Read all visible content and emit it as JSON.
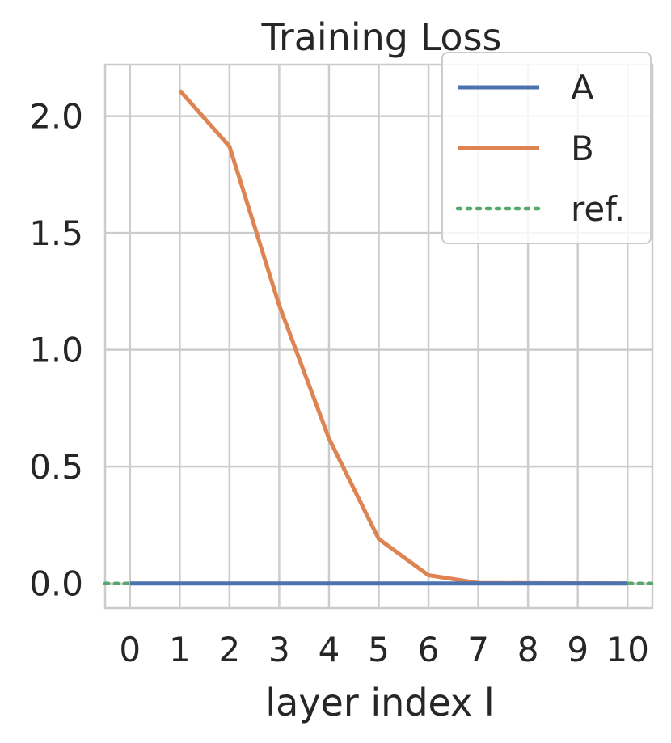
{
  "chart_data": {
    "type": "line",
    "title": "Training Loss",
    "xlabel": "layer index l",
    "ylabel": "",
    "xlim": [
      -0.5,
      10.5
    ],
    "ylim": [
      -0.105,
      2.22
    ],
    "x_ticks": [
      0,
      1,
      2,
      3,
      4,
      5,
      6,
      7,
      8,
      9,
      10
    ],
    "y_ticks": [
      0.0,
      0.5,
      1.0,
      1.5,
      2.0
    ],
    "y_tick_labels": [
      "0.0",
      "0.5",
      "1.0",
      "1.5",
      "2.0"
    ],
    "grid": true,
    "legend_position": "top-right",
    "series": [
      {
        "name": "A",
        "color": "#4c72b0",
        "style": "solid",
        "x": [
          0,
          1,
          2,
          3,
          4,
          5,
          6,
          7,
          8,
          9,
          10
        ],
        "y": [
          0,
          0,
          0,
          0,
          0,
          0,
          0,
          0,
          0,
          0,
          0
        ]
      },
      {
        "name": "B",
        "color": "#dd8452",
        "style": "solid",
        "x": [
          1,
          2,
          3,
          4,
          5,
          6,
          7,
          8,
          9,
          10
        ],
        "y": [
          2.11,
          1.87,
          1.19,
          0.62,
          0.19,
          0.035,
          0.002,
          0.001,
          0.0005,
          0.0002
        ]
      },
      {
        "name": "ref.",
        "color": "#55a868",
        "style": "dotted",
        "x": [
          -0.5,
          10.5
        ],
        "y": [
          0,
          0
        ]
      }
    ]
  }
}
